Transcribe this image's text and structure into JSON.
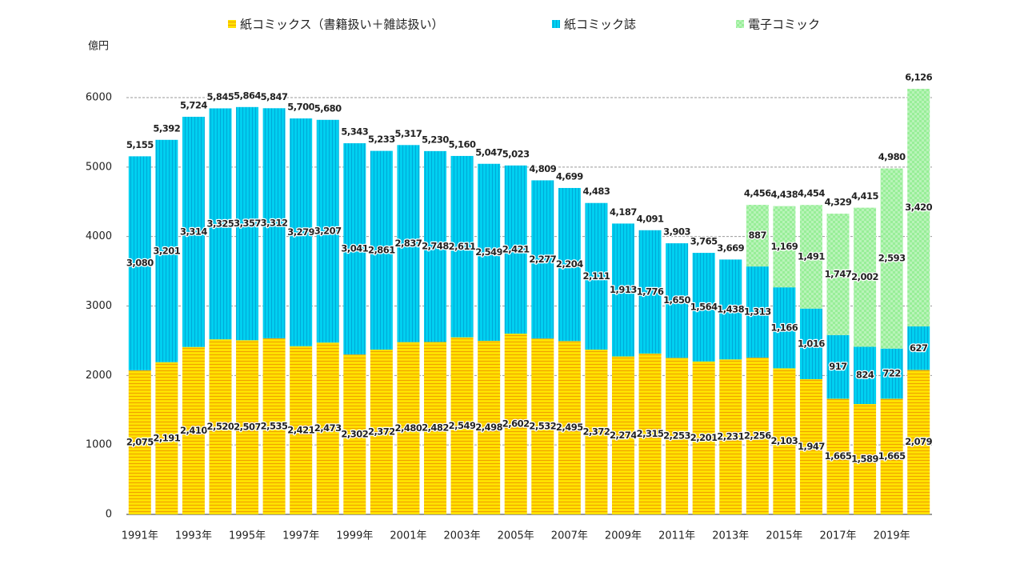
{
  "chart_data": {
    "type": "stacked_bar",
    "y_label": "億円",
    "categories": [
      "1991年",
      null,
      "1993年",
      null,
      "1995年",
      null,
      "1997年",
      null,
      "1999年",
      null,
      "2001年",
      null,
      "2003年",
      null,
      "2005年",
      null,
      "2007年",
      null,
      "2009年",
      null,
      "2011年",
      null,
      "2013年",
      null,
      "2015年",
      null,
      "2017年",
      null,
      "2019年",
      null
    ],
    "series": [
      {
        "name": "紙コミックス（書籍扱い＋雑誌扱い）",
        "color": "#ffe000",
        "values": [
          2075,
          2191,
          2410,
          2520,
          2507,
          2535,
          2421,
          2473,
          2302,
          2372,
          2480,
          2482,
          2549,
          2498,
          2602,
          2532,
          2495,
          2372,
          2274,
          2315,
          2253,
          2201,
          2231,
          2256,
          2103,
          1947,
          1665,
          1589,
          1665,
          2079
        ],
        "value_labels": [
          "2,075",
          "2,191",
          "2,410",
          "2,520",
          "2,507",
          "2,535",
          "2,421",
          "2,473",
          "2,302",
          "2,372",
          "2,480",
          "2,482",
          "2,549",
          "2,498",
          "2,602",
          "2,532",
          "2,495",
          "2,372",
          "2,274",
          "2,315",
          "2,253",
          "2,201",
          "2,231",
          "2,256",
          "2,103",
          "1,947",
          "1,665",
          "1,589",
          "1,665",
          "2,079"
        ]
      },
      {
        "name": "紙コミック誌",
        "color": "#00d0f0",
        "values": [
          3080,
          3201,
          3314,
          3325,
          3357,
          3312,
          3279,
          3207,
          3041,
          2861,
          2837,
          2748,
          2611,
          2549,
          2421,
          2277,
          2204,
          2111,
          1913,
          1776,
          1650,
          1564,
          1438,
          1313,
          1166,
          1016,
          917,
          824,
          722,
          627
        ],
        "value_labels": [
          "3,080",
          "3,201",
          "3,314",
          "3,325",
          "3,357",
          "3,312",
          "3,279",
          "3,207",
          "3,041",
          "2,861",
          "2,837",
          "2,748",
          "2,611",
          "2,549",
          "2,421",
          "2,277",
          "2,204",
          "2,111",
          "1,913",
          "1,776",
          "1,650",
          "1,564",
          "1,438",
          "1,313",
          "1,166",
          "1,016",
          "917",
          "824",
          "722",
          "627"
        ]
      },
      {
        "name": "電子コミック",
        "color": "#98ee98",
        "values": [
          null,
          null,
          null,
          null,
          null,
          null,
          null,
          null,
          null,
          null,
          null,
          null,
          null,
          null,
          null,
          null,
          null,
          null,
          null,
          null,
          null,
          null,
          null,
          887,
          1169,
          1491,
          1747,
          2002,
          2593,
          3420
        ],
        "value_labels": [
          null,
          null,
          null,
          null,
          null,
          null,
          null,
          null,
          null,
          null,
          null,
          null,
          null,
          null,
          null,
          null,
          null,
          null,
          null,
          null,
          null,
          null,
          null,
          "887",
          "1,169",
          "1,491",
          "1,747",
          "2,002",
          "2,593",
          "3,420"
        ]
      }
    ],
    "totals": [
      5155,
      5392,
      5724,
      5845,
      5864,
      5847,
      5700,
      5680,
      5343,
      5233,
      5317,
      5230,
      5160,
      5047,
      5023,
      4809,
      4699,
      4483,
      4187,
      4091,
      3903,
      3765,
      3669,
      4456,
      4438,
      4454,
      4329,
      4415,
      4980,
      6126
    ],
    "totals_labels": [
      "5,155",
      "5,392",
      "5,724",
      "5,845",
      "5,864",
      "5,847",
      "5,700",
      "5,680",
      "5,343",
      "5,233",
      "5,317",
      "5,230",
      "5,160",
      "5,047",
      "5,023",
      "4,809",
      "4,699",
      "4,483",
      "4,187",
      "4,091",
      "3,903",
      "3,765",
      "3,669",
      "4,456",
      "4,438",
      "4,454",
      "4,329",
      "4,415",
      "4,980",
      "6,126"
    ],
    "ylim": [
      0,
      6000
    ],
    "yticks": [
      0,
      1000,
      2000,
      3000,
      4000,
      5000,
      6000
    ],
    "grid": true
  }
}
